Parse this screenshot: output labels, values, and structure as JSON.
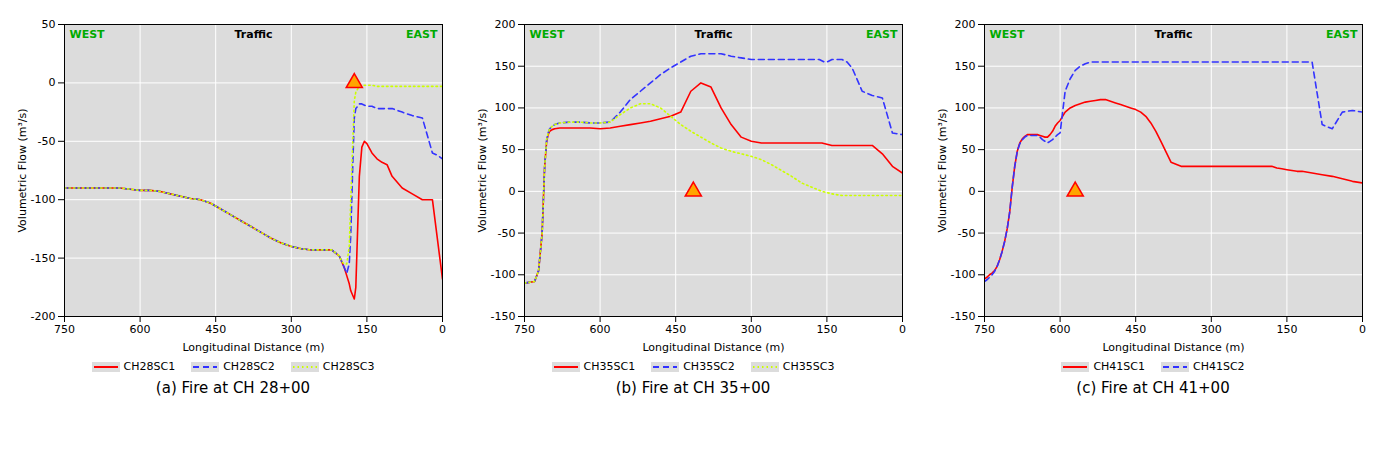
{
  "chart_data": [
    {
      "type": "line",
      "title": "(a) Fire at CH 28+00",
      "xlabel": "Longitudinal Distance (m)",
      "ylabel": "Volumetric Flow (m³/s)",
      "xlim": [
        750,
        0
      ],
      "ylim": [
        -200,
        50
      ],
      "xticks": [
        750,
        600,
        450,
        300,
        150,
        0
      ],
      "yticks": [
        50,
        0,
        -50,
        -100,
        -150,
        -200
      ],
      "grid": true,
      "legend": "bottom",
      "annotations": [
        "WEST",
        "EAST",
        "Traffic"
      ],
      "fire_x": 175,
      "fire_y": 0,
      "series": [
        {
          "name": "CH28SC1",
          "color": "red",
          "line_style": "solid",
          "x": [
            750,
            720,
            700,
            680,
            660,
            640,
            620,
            600,
            580,
            560,
            540,
            520,
            500,
            480,
            460,
            440,
            420,
            400,
            380,
            360,
            340,
            320,
            300,
            280,
            260,
            240,
            220,
            205,
            200,
            195,
            190,
            185,
            182,
            178,
            175,
            172,
            168,
            165,
            160,
            155,
            150,
            140,
            130,
            120,
            110,
            100,
            80,
            60,
            40,
            20,
            0
          ],
          "values": [
            -90,
            -90,
            -90,
            -90,
            -90,
            -90,
            -91,
            -92,
            -92,
            -93,
            -95,
            -97,
            -99,
            -100,
            -103,
            -108,
            -113,
            -118,
            -123,
            -128,
            -133,
            -137,
            -140,
            -142,
            -143,
            -143,
            -143,
            -148,
            -153,
            -158,
            -165,
            -172,
            -178,
            -182,
            -185,
            -175,
            -120,
            -80,
            -55,
            -50,
            -52,
            -60,
            -65,
            -68,
            -70,
            -80,
            -90,
            -95,
            -100,
            -100,
            -168
          ]
        },
        {
          "name": "CH28SC2",
          "color": "#3333ff",
          "line_style": "dashed",
          "x": [
            750,
            720,
            700,
            680,
            660,
            640,
            620,
            600,
            580,
            560,
            540,
            520,
            500,
            480,
            460,
            440,
            420,
            400,
            380,
            360,
            340,
            320,
            300,
            280,
            260,
            240,
            220,
            205,
            200,
            195,
            190,
            185,
            182,
            178,
            175,
            172,
            168,
            165,
            160,
            150,
            140,
            130,
            120,
            100,
            80,
            60,
            40,
            20,
            10,
            0
          ],
          "values": [
            -90,
            -90,
            -90,
            -90,
            -90,
            -90,
            -91,
            -92,
            -92,
            -93,
            -95,
            -97,
            -99,
            -100,
            -103,
            -108,
            -113,
            -118,
            -123,
            -128,
            -133,
            -137,
            -140,
            -142,
            -143,
            -143,
            -143,
            -148,
            -153,
            -158,
            -163,
            -155,
            -130,
            -70,
            -30,
            -22,
            -20,
            -18,
            -18,
            -20,
            -20,
            -22,
            -22,
            -22,
            -25,
            -28,
            -30,
            -60,
            -62,
            -65
          ]
        },
        {
          "name": "CH28SC3",
          "color": "#ccff00",
          "line_style": "dotted",
          "x": [
            750,
            720,
            700,
            680,
            660,
            640,
            620,
            600,
            580,
            560,
            540,
            520,
            500,
            480,
            460,
            440,
            420,
            400,
            380,
            360,
            340,
            320,
            300,
            280,
            260,
            240,
            220,
            205,
            200,
            195,
            190,
            185,
            182,
            178,
            175,
            172,
            168,
            165,
            160,
            150,
            140,
            130,
            120,
            100,
            80,
            60,
            40,
            20,
            0
          ],
          "values": [
            -90,
            -90,
            -90,
            -90,
            -90,
            -90,
            -91,
            -92,
            -92,
            -93,
            -95,
            -97,
            -99,
            -100,
            -103,
            -108,
            -113,
            -118,
            -123,
            -128,
            -133,
            -137,
            -140,
            -142,
            -143,
            -143,
            -143,
            -148,
            -153,
            -155,
            -155,
            -140,
            -100,
            -50,
            -15,
            -8,
            -5,
            -3,
            -2,
            -2,
            -2,
            -3,
            -3,
            -3,
            -3,
            -3,
            -3,
            -3,
            -3
          ]
        }
      ]
    },
    {
      "type": "line",
      "title": "(b) Fire at CH 35+00",
      "xlabel": "Longitudinal Distance (m)",
      "ylabel": "Volumetric Flow (m³/s)",
      "xlim": [
        750,
        0
      ],
      "ylim": [
        -150,
        200
      ],
      "xticks": [
        750,
        600,
        450,
        300,
        150,
        0
      ],
      "yticks": [
        200,
        150,
        100,
        50,
        0,
        -50,
        -100,
        -150
      ],
      "grid": true,
      "legend": "bottom",
      "annotations": [
        "WEST",
        "EAST",
        "Traffic"
      ],
      "fire_x": 415,
      "fire_y": 0,
      "series": [
        {
          "name": "CH35SC1",
          "color": "red",
          "line_style": "solid",
          "x": [
            750,
            730,
            722,
            715,
            710,
            706,
            703,
            700,
            695,
            690,
            680,
            660,
            640,
            620,
            600,
            580,
            560,
            540,
            520,
            500,
            480,
            460,
            440,
            420,
            400,
            380,
            360,
            340,
            320,
            300,
            280,
            260,
            240,
            220,
            200,
            180,
            160,
            140,
            120,
            100,
            80,
            60,
            40,
            20,
            0
          ],
          "values": [
            -110,
            -108,
            -95,
            -50,
            30,
            60,
            68,
            72,
            74,
            75,
            76,
            76,
            76,
            76,
            75,
            76,
            78,
            80,
            82,
            84,
            87,
            90,
            95,
            120,
            130,
            125,
            100,
            80,
            65,
            60,
            58,
            58,
            58,
            58,
            58,
            58,
            58,
            55,
            55,
            55,
            55,
            55,
            45,
            30,
            22
          ]
        },
        {
          "name": "CH35SC2",
          "color": "#3333ff",
          "line_style": "dashed",
          "x": [
            750,
            730,
            722,
            715,
            710,
            706,
            703,
            700,
            695,
            690,
            680,
            660,
            640,
            620,
            600,
            580,
            560,
            540,
            520,
            500,
            480,
            460,
            440,
            420,
            400,
            380,
            360,
            340,
            320,
            300,
            280,
            260,
            240,
            220,
            200,
            180,
            165,
            155,
            150,
            140,
            130,
            120,
            110,
            100,
            80,
            60,
            40,
            20,
            0
          ],
          "values": [
            -110,
            -108,
            -95,
            -50,
            30,
            62,
            70,
            75,
            78,
            80,
            82,
            83,
            83,
            82,
            82,
            83,
            95,
            110,
            120,
            130,
            140,
            148,
            155,
            162,
            165,
            165,
            165,
            162,
            160,
            158,
            158,
            158,
            158,
            158,
            158,
            158,
            158,
            155,
            155,
            158,
            158,
            158,
            155,
            148,
            120,
            115,
            112,
            70,
            68
          ]
        },
        {
          "name": "CH35SC3",
          "color": "#ccff00",
          "line_style": "dotted",
          "x": [
            750,
            730,
            722,
            715,
            710,
            706,
            703,
            700,
            695,
            690,
            680,
            660,
            640,
            620,
            600,
            580,
            560,
            540,
            520,
            500,
            480,
            460,
            440,
            420,
            400,
            380,
            360,
            340,
            320,
            300,
            280,
            260,
            240,
            220,
            200,
            180,
            160,
            140,
            120,
            100,
            80,
            60,
            40,
            20,
            0
          ],
          "values": [
            -110,
            -108,
            -95,
            -50,
            30,
            62,
            70,
            75,
            78,
            80,
            82,
            83,
            83,
            82,
            82,
            83,
            92,
            100,
            105,
            105,
            100,
            90,
            80,
            72,
            65,
            58,
            52,
            48,
            45,
            42,
            38,
            32,
            25,
            18,
            10,
            5,
            0,
            -3,
            -5,
            -5,
            -5,
            -5,
            -5,
            -5,
            -5
          ]
        }
      ]
    },
    {
      "type": "line",
      "title": "(c) Fire at CH 41+00",
      "xlabel": "Longitudinal Distance (m)",
      "ylabel": "Volumetric Flow (m³/s)",
      "xlim": [
        750,
        0
      ],
      "ylim": [
        -150,
        200
      ],
      "xticks": [
        750,
        600,
        450,
        300,
        150,
        0
      ],
      "yticks": [
        200,
        150,
        100,
        50,
        0,
        -50,
        -100,
        -150
      ],
      "grid": true,
      "legend": "bottom",
      "annotations": [
        "WEST",
        "EAST",
        "Traffic"
      ],
      "fire_x": 570,
      "fire_y": 0,
      "series": [
        {
          "name": "CH41SC1",
          "color": "red",
          "line_style": "solid",
          "x": [
            750,
            745,
            740,
            735,
            730,
            725,
            720,
            715,
            710,
            705,
            700,
            695,
            690,
            685,
            680,
            675,
            670,
            665,
            660,
            655,
            650,
            645,
            640,
            635,
            630,
            625,
            620,
            615,
            610,
            605,
            600,
            590,
            580,
            570,
            560,
            550,
            540,
            530,
            520,
            510,
            500,
            490,
            480,
            470,
            460,
            450,
            440,
            430,
            420,
            410,
            400,
            380,
            360,
            340,
            320,
            300,
            280,
            260,
            240,
            220,
            200,
            180,
            170,
            160,
            150,
            140,
            130,
            120,
            100,
            80,
            60,
            40,
            20,
            0
          ],
          "values": [
            -105,
            -103,
            -100,
            -98,
            -95,
            -90,
            -82,
            -72,
            -60,
            -45,
            -25,
            5,
            30,
            48,
            58,
            63,
            66,
            68,
            68,
            68,
            68,
            68,
            67,
            66,
            65,
            65,
            68,
            72,
            78,
            82,
            85,
            95,
            100,
            103,
            105,
            107,
            108,
            109,
            110,
            110,
            108,
            106,
            104,
            102,
            100,
            98,
            95,
            90,
            82,
            72,
            60,
            35,
            30,
            30,
            30,
            30,
            30,
            30,
            30,
            30,
            30,
            30,
            28,
            27,
            26,
            25,
            24,
            24,
            22,
            20,
            18,
            15,
            12,
            10
          ]
        },
        {
          "name": "CH41SC2",
          "color": "#3333ff",
          "line_style": "dashed",
          "x": [
            750,
            745,
            740,
            735,
            730,
            725,
            720,
            715,
            710,
            705,
            700,
            695,
            690,
            685,
            680,
            675,
            670,
            665,
            660,
            655,
            650,
            645,
            640,
            635,
            630,
            625,
            620,
            615,
            610,
            605,
            600,
            590,
            580,
            570,
            560,
            550,
            540,
            530,
            520,
            510,
            500,
            490,
            480,
            470,
            460,
            450,
            440,
            430,
            420,
            410,
            400,
            380,
            360,
            340,
            320,
            300,
            280,
            260,
            240,
            220,
            200,
            180,
            170,
            160,
            150,
            140,
            130,
            120,
            110,
            100,
            80,
            60,
            40,
            20,
            0
          ],
          "values": [
            -108,
            -106,
            -103,
            -100,
            -96,
            -90,
            -82,
            -72,
            -60,
            -45,
            -25,
            5,
            30,
            48,
            57,
            62,
            65,
            67,
            67,
            67,
            67,
            67,
            65,
            62,
            60,
            58,
            60,
            62,
            65,
            68,
            70,
            120,
            135,
            145,
            150,
            153,
            155,
            155,
            155,
            155,
            155,
            155,
            155,
            155,
            155,
            155,
            155,
            155,
            155,
            155,
            155,
            155,
            155,
            155,
            155,
            155,
            155,
            155,
            155,
            155,
            155,
            155,
            155,
            155,
            155,
            155,
            155,
            155,
            155,
            155,
            80,
            75,
            95,
            97,
            95
          ]
        }
      ]
    }
  ]
}
